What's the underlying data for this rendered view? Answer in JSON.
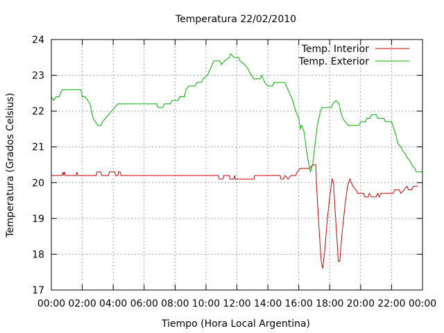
{
  "chart_data": {
    "type": "line",
    "title": "Temperatura 22/02/2010",
    "xlabel": "Tiempo (Hora Local Argentina)",
    "ylabel": "Temperatura (Grados Celsius)",
    "xlim": [
      0,
      24
    ],
    "ylim": [
      17,
      24
    ],
    "x_tick_labels": [
      "00:00",
      "02:00",
      "04:00",
      "06:00",
      "08:00",
      "10:00",
      "12:00",
      "14:00",
      "16:00",
      "18:00",
      "20:00",
      "22:00",
      "00:00"
    ],
    "y_ticks": [
      17,
      18,
      19,
      20,
      21,
      22,
      23,
      24
    ],
    "grid": true,
    "legend_position": "top-right",
    "series": [
      {
        "name": "Temp. Interior",
        "color": "#cc0000",
        "points": [
          [
            0.0,
            20.2
          ],
          [
            0.7,
            20.2
          ],
          [
            0.75,
            20.3
          ],
          [
            0.8,
            20.2
          ],
          [
            0.85,
            20.3
          ],
          [
            0.9,
            20.2
          ],
          [
            1.6,
            20.2
          ],
          [
            1.65,
            20.3
          ],
          [
            1.7,
            20.2
          ],
          [
            2.9,
            20.2
          ],
          [
            2.95,
            20.3
          ],
          [
            3.2,
            20.3
          ],
          [
            3.25,
            20.2
          ],
          [
            3.7,
            20.2
          ],
          [
            3.75,
            20.3
          ],
          [
            4.1,
            20.3
          ],
          [
            4.15,
            20.2
          ],
          [
            4.3,
            20.2
          ],
          [
            4.35,
            20.3
          ],
          [
            4.45,
            20.3
          ],
          [
            4.5,
            20.2
          ],
          [
            10.8,
            20.2
          ],
          [
            10.85,
            20.1
          ],
          [
            11.1,
            20.1
          ],
          [
            11.15,
            20.2
          ],
          [
            11.5,
            20.2
          ],
          [
            11.55,
            20.1
          ],
          [
            11.8,
            20.1
          ],
          [
            11.85,
            20.2
          ],
          [
            11.9,
            20.1
          ],
          [
            13.1,
            20.1
          ],
          [
            13.15,
            20.2
          ],
          [
            14.8,
            20.2
          ],
          [
            14.85,
            20.1
          ],
          [
            15.0,
            20.1
          ],
          [
            15.1,
            20.2
          ],
          [
            15.3,
            20.1
          ],
          [
            15.5,
            20.2
          ],
          [
            15.8,
            20.2
          ],
          [
            15.9,
            20.3
          ],
          [
            16.1,
            20.4
          ],
          [
            16.7,
            20.4
          ],
          [
            16.9,
            20.5
          ],
          [
            17.1,
            20.5
          ],
          [
            17.15,
            19.9
          ],
          [
            17.3,
            18.8
          ],
          [
            17.45,
            17.8
          ],
          [
            17.55,
            17.6
          ],
          [
            17.7,
            18.2
          ],
          [
            17.85,
            19.0
          ],
          [
            18.0,
            19.6
          ],
          [
            18.15,
            20.1
          ],
          [
            18.25,
            20.0
          ],
          [
            18.35,
            19.2
          ],
          [
            18.5,
            18.2
          ],
          [
            18.55,
            17.8
          ],
          [
            18.65,
            17.8
          ],
          [
            18.8,
            18.6
          ],
          [
            19.0,
            19.4
          ],
          [
            19.15,
            19.9
          ],
          [
            19.3,
            20.1
          ],
          [
            19.5,
            19.9
          ],
          [
            19.7,
            19.8
          ],
          [
            19.8,
            19.7
          ],
          [
            20.2,
            19.7
          ],
          [
            20.25,
            19.6
          ],
          [
            20.5,
            19.6
          ],
          [
            20.55,
            19.7
          ],
          [
            20.7,
            19.6
          ],
          [
            21.0,
            19.6
          ],
          [
            21.1,
            19.7
          ],
          [
            21.2,
            19.6
          ],
          [
            21.3,
            19.7
          ],
          [
            22.1,
            19.7
          ],
          [
            22.2,
            19.8
          ],
          [
            22.5,
            19.8
          ],
          [
            22.6,
            19.7
          ],
          [
            22.8,
            19.8
          ],
          [
            23.0,
            19.9
          ],
          [
            23.1,
            19.8
          ],
          [
            23.3,
            19.8
          ],
          [
            23.4,
            19.9
          ],
          [
            23.6,
            19.9
          ],
          [
            23.7,
            19.9
          ]
        ]
      },
      {
        "name": "Temp. Exterior",
        "color": "#00b000",
        "points": [
          [
            0.0,
            22.4
          ],
          [
            0.15,
            22.3
          ],
          [
            0.3,
            22.4
          ],
          [
            0.5,
            22.4
          ],
          [
            0.6,
            22.5
          ],
          [
            0.7,
            22.6
          ],
          [
            1.9,
            22.6
          ],
          [
            2.0,
            22.4
          ],
          [
            2.2,
            22.4
          ],
          [
            2.35,
            22.3
          ],
          [
            2.5,
            22.2
          ],
          [
            2.6,
            22.0
          ],
          [
            2.7,
            21.8
          ],
          [
            2.85,
            21.7
          ],
          [
            3.0,
            21.6
          ],
          [
            3.2,
            21.6
          ],
          [
            3.3,
            21.7
          ],
          [
            3.5,
            21.8
          ],
          [
            3.7,
            21.9
          ],
          [
            3.9,
            22.0
          ],
          [
            4.1,
            22.1
          ],
          [
            4.3,
            22.2
          ],
          [
            6.8,
            22.2
          ],
          [
            6.9,
            22.1
          ],
          [
            7.2,
            22.1
          ],
          [
            7.3,
            22.2
          ],
          [
            7.7,
            22.2
          ],
          [
            7.8,
            22.3
          ],
          [
            8.2,
            22.3
          ],
          [
            8.3,
            22.4
          ],
          [
            8.6,
            22.4
          ],
          [
            8.7,
            22.6
          ],
          [
            8.9,
            22.7
          ],
          [
            9.3,
            22.7
          ],
          [
            9.4,
            22.8
          ],
          [
            9.7,
            22.8
          ],
          [
            9.8,
            22.9
          ],
          [
            10.1,
            23.0
          ],
          [
            10.3,
            23.2
          ],
          [
            10.5,
            23.4
          ],
          [
            10.9,
            23.4
          ],
          [
            11.0,
            23.3
          ],
          [
            11.2,
            23.4
          ],
          [
            11.5,
            23.5
          ],
          [
            11.6,
            23.6
          ],
          [
            11.8,
            23.5
          ],
          [
            12.1,
            23.5
          ],
          [
            12.2,
            23.4
          ],
          [
            12.5,
            23.3
          ],
          [
            12.7,
            23.2
          ],
          [
            12.8,
            23.1
          ],
          [
            13.1,
            22.9
          ],
          [
            13.5,
            22.9
          ],
          [
            13.6,
            23.0
          ],
          [
            13.8,
            22.8
          ],
          [
            14.0,
            22.7
          ],
          [
            14.3,
            22.7
          ],
          [
            14.4,
            22.8
          ],
          [
            15.1,
            22.8
          ],
          [
            15.2,
            22.7
          ],
          [
            15.4,
            22.5
          ],
          [
            15.6,
            22.3
          ],
          [
            15.8,
            22.0
          ],
          [
            16.0,
            21.8
          ],
          [
            16.1,
            21.5
          ],
          [
            16.2,
            21.6
          ],
          [
            16.35,
            21.4
          ],
          [
            16.5,
            20.9
          ],
          [
            16.65,
            20.5
          ],
          [
            16.75,
            20.3
          ],
          [
            16.9,
            20.5
          ],
          [
            17.0,
            20.9
          ],
          [
            17.2,
            21.6
          ],
          [
            17.4,
            22.0
          ],
          [
            17.5,
            22.1
          ],
          [
            18.1,
            22.1
          ],
          [
            18.2,
            22.2
          ],
          [
            18.4,
            22.3
          ],
          [
            18.6,
            22.2
          ],
          [
            18.7,
            22.0
          ],
          [
            18.85,
            21.8
          ],
          [
            19.0,
            21.7
          ],
          [
            19.2,
            21.6
          ],
          [
            19.9,
            21.6
          ],
          [
            20.0,
            21.7
          ],
          [
            20.3,
            21.7
          ],
          [
            20.4,
            21.8
          ],
          [
            20.6,
            21.8
          ],
          [
            20.7,
            21.9
          ],
          [
            21.0,
            21.9
          ],
          [
            21.1,
            21.8
          ],
          [
            21.5,
            21.8
          ],
          [
            21.6,
            21.7
          ],
          [
            22.0,
            21.7
          ],
          [
            22.15,
            21.5
          ],
          [
            22.3,
            21.3
          ],
          [
            22.4,
            21.1
          ],
          [
            22.6,
            21.0
          ],
          [
            22.7,
            20.9
          ],
          [
            22.9,
            20.8
          ],
          [
            23.0,
            20.7
          ],
          [
            23.2,
            20.6
          ],
          [
            23.3,
            20.5
          ],
          [
            23.5,
            20.4
          ],
          [
            23.6,
            20.3
          ],
          [
            24.0,
            20.3
          ]
        ]
      }
    ]
  }
}
